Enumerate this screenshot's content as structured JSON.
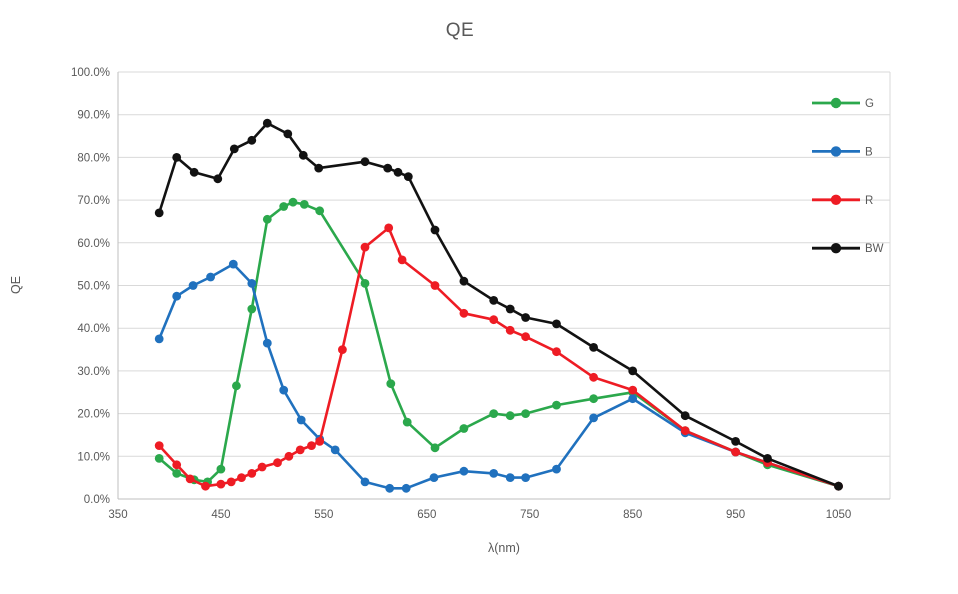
{
  "chart_data": {
    "type": "line",
    "title": "QE",
    "xlabel": "λ(nm)",
    "ylabel": "QE",
    "x_axis": {
      "min": 350,
      "max": 1100,
      "tick_step": 100,
      "tick_labels": [
        "350",
        "450",
        "550",
        "650",
        "750",
        "850",
        "950",
        "1050"
      ],
      "tick_values": [
        350,
        450,
        550,
        650,
        750,
        850,
        950,
        1050
      ]
    },
    "y_axis": {
      "min": 0,
      "max": 100,
      "tick_step": 10,
      "tick_labels": [
        "0.0%",
        "10.0%",
        "20.0%",
        "30.0%",
        "40.0%",
        "50.0%",
        "60.0%",
        "70.0%",
        "80.0%",
        "90.0%",
        "100.0%"
      ],
      "tick_values": [
        0,
        10,
        20,
        30,
        40,
        50,
        60,
        70,
        80,
        90,
        100
      ]
    },
    "grid": "horizontal-only",
    "legend_position": "top-right-inside",
    "colors": {
      "grid": "#d9d9d9",
      "axis": "#bfbfbf",
      "text": "#595959",
      "background": "#ffffff"
    },
    "series": [
      {
        "name": "G",
        "color": "#2ba84c",
        "points": [
          [
            390,
            9.5
          ],
          [
            407,
            6
          ],
          [
            424,
            4.5
          ],
          [
            437,
            4
          ],
          [
            450,
            7
          ],
          [
            465,
            26.5
          ],
          [
            480,
            44.5
          ],
          [
            495,
            65.5
          ],
          [
            511,
            68.5
          ],
          [
            520,
            69.5
          ],
          [
            531,
            69
          ],
          [
            546,
            67.5
          ],
          [
            590,
            50.5
          ],
          [
            615,
            27
          ],
          [
            631,
            18
          ],
          [
            658,
            12
          ],
          [
            686,
            16.5
          ],
          [
            715,
            20
          ],
          [
            731,
            19.5
          ],
          [
            746,
            20
          ],
          [
            776,
            22
          ],
          [
            812,
            23.5
          ],
          [
            850,
            25
          ],
          [
            901,
            16
          ],
          [
            950,
            11
          ],
          [
            981,
            8
          ],
          [
            1050,
            3
          ]
        ]
      },
      {
        "name": "B",
        "color": "#2071be",
        "points": [
          [
            390,
            37.5
          ],
          [
            407,
            47.5
          ],
          [
            423,
            50
          ],
          [
            440,
            52
          ],
          [
            462,
            55
          ],
          [
            480,
            50.5
          ],
          [
            495,
            36.5
          ],
          [
            511,
            25.5
          ],
          [
            528,
            18.5
          ],
          [
            546,
            14
          ],
          [
            561,
            11.5
          ],
          [
            590,
            4
          ],
          [
            614,
            2.5
          ],
          [
            630,
            2.5
          ],
          [
            657,
            5
          ],
          [
            686,
            6.5
          ],
          [
            715,
            6
          ],
          [
            731,
            5
          ],
          [
            746,
            5
          ],
          [
            776,
            7
          ],
          [
            812,
            19
          ],
          [
            850,
            23.5
          ],
          [
            901,
            15.5
          ],
          [
            950,
            11
          ],
          [
            981,
            8.5
          ],
          [
            1050,
            3
          ]
        ]
      },
      {
        "name": "R",
        "color": "#ee1c24",
        "points": [
          [
            390,
            12.5
          ],
          [
            407,
            8
          ],
          [
            420,
            4.7
          ],
          [
            435,
            3
          ],
          [
            450,
            3.5
          ],
          [
            460,
            4
          ],
          [
            470,
            5
          ],
          [
            480,
            6
          ],
          [
            490,
            7.5
          ],
          [
            505,
            8.5
          ],
          [
            516,
            10
          ],
          [
            527,
            11.5
          ],
          [
            538,
            12.5
          ],
          [
            546,
            13.5
          ],
          [
            568,
            35
          ],
          [
            590,
            59
          ],
          [
            613,
            63.5
          ],
          [
            626,
            56
          ],
          [
            658,
            50
          ],
          [
            686,
            43.5
          ],
          [
            715,
            42
          ],
          [
            731,
            39.5
          ],
          [
            746,
            38
          ],
          [
            776,
            34.5
          ],
          [
            812,
            28.5
          ],
          [
            850,
            25.5
          ],
          [
            901,
            16
          ],
          [
            950,
            11
          ],
          [
            981,
            8.5
          ],
          [
            1050,
            3
          ]
        ]
      },
      {
        "name": "BW",
        "color": "#121212",
        "points": [
          [
            390,
            67
          ],
          [
            407,
            80
          ],
          [
            424,
            76.5
          ],
          [
            447,
            75
          ],
          [
            463,
            82
          ],
          [
            480,
            84
          ],
          [
            495,
            88
          ],
          [
            515,
            85.5
          ],
          [
            530,
            80.5
          ],
          [
            545,
            77.5
          ],
          [
            590,
            79
          ],
          [
            612,
            77.5
          ],
          [
            622,
            76.5
          ],
          [
            632,
            75.5
          ],
          [
            658,
            63
          ],
          [
            686,
            51
          ],
          [
            715,
            46.5
          ],
          [
            731,
            44.5
          ],
          [
            746,
            42.5
          ],
          [
            776,
            41
          ],
          [
            812,
            35.5
          ],
          [
            850,
            30
          ],
          [
            901,
            19.5
          ],
          [
            950,
            13.5
          ],
          [
            981,
            9.5
          ],
          [
            1050,
            3
          ]
        ]
      }
    ]
  }
}
